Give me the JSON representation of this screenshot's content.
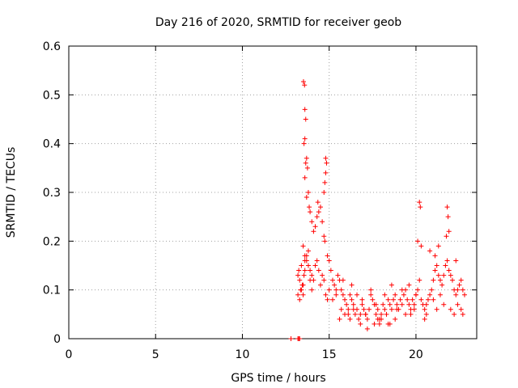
{
  "chart_data": {
    "type": "scatter",
    "title": "Day 216 of 2020, SRMTID for receiver geob",
    "xlabel": "GPS time / hours",
    "ylabel": "SRMTID / TECUs",
    "xlim": [
      0,
      23.5
    ],
    "ylim": [
      0,
      0.6
    ],
    "x_ticks": [
      0,
      5,
      10,
      15,
      20
    ],
    "y_ticks": [
      0,
      0.1,
      0.2,
      0.3,
      0.4,
      0.5,
      0.6
    ],
    "x_tick_labels": [
      "0",
      "5",
      "10",
      "15",
      "20"
    ],
    "y_tick_labels": [
      "0",
      "0.1",
      "0.2",
      "0.3",
      "0.4",
      "0.5",
      "0.6"
    ],
    "grid": true,
    "marker": "+",
    "marker_color": "#ff0000",
    "series": [
      {
        "name": "SRMTID",
        "x": [
          12.8,
          13.2,
          13.25,
          13.3,
          13.2,
          13.25,
          13.3,
          13.35,
          13.4,
          13.45,
          13.5,
          13.55,
          13.6,
          13.2,
          13.3,
          13.4,
          13.5,
          13.6,
          13.7,
          13.8,
          13.9,
          14.0,
          13.5,
          13.6,
          13.7,
          13.8,
          13.9,
          14.0,
          14.1,
          14.2,
          14.3,
          14.4,
          14.5,
          14.6,
          14.7,
          14.8,
          14.9,
          15.0,
          13.52,
          13.58,
          13.6,
          13.65,
          13.55,
          13.6,
          13.7,
          13.65,
          13.6,
          13.75,
          13.8,
          13.7,
          13.85,
          13.9,
          14.0,
          14.1,
          14.2,
          14.3,
          14.35,
          14.4,
          14.5,
          14.6,
          14.7,
          14.75,
          14.8,
          14.85,
          14.8,
          14.75,
          14.7,
          14.9,
          15.0,
          15.1,
          15.2,
          15.3,
          15.4,
          15.5,
          15.6,
          15.7,
          15.8,
          15.9,
          16.0,
          16.1,
          16.2,
          16.3,
          16.4,
          16.5,
          16.6,
          16.7,
          16.8,
          16.9,
          17.0,
          17.1,
          17.2,
          17.3,
          17.4,
          17.5,
          17.6,
          17.7,
          17.8,
          17.9,
          18.0,
          18.1,
          18.2,
          18.3,
          18.4,
          18.5,
          18.6,
          18.7,
          18.8,
          18.9,
          19.0,
          19.1,
          19.2,
          19.3,
          19.4,
          19.5,
          19.6,
          19.7,
          19.8,
          19.9,
          20.0,
          20.1,
          20.2,
          20.3,
          20.4,
          20.5,
          20.6,
          20.7,
          20.8,
          20.9,
          21.0,
          21.1,
          21.2,
          21.3,
          21.4,
          21.5,
          21.6,
          21.7,
          21.8,
          21.9,
          22.0,
          22.1,
          22.2,
          22.3,
          22.4,
          22.5,
          22.6,
          22.7,
          22.8,
          20.2,
          20.25,
          20.1,
          20.3,
          21.8,
          21.85,
          21.9,
          21.75,
          21.3,
          20.8,
          21.1,
          22.3,
          16.8,
          17.2,
          17.6,
          18.0,
          18.4,
          16.1,
          15.7,
          15.4,
          15.2,
          15.8,
          16.3,
          16.6,
          17.4,
          18.2,
          18.6,
          19.2,
          19.6,
          20.0,
          20.6,
          21.0,
          21.4,
          21.6,
          22.0,
          22.4,
          22.7,
          17.9,
          18.8,
          19.4,
          19.9,
          16.9,
          17.7,
          16.4,
          15.9,
          15.6,
          18.9,
          19.7,
          20.5,
          21.2,
          22.2,
          22.6,
          16.2,
          17.1,
          17.8,
          18.5
        ],
        "y": [
          0.0,
          0.0,
          0.0,
          0.0,
          0.13,
          0.14,
          0.12,
          0.1,
          0.15,
          0.11,
          0.09,
          0.13,
          0.16,
          0.09,
          0.08,
          0.1,
          0.11,
          0.14,
          0.17,
          0.15,
          0.12,
          0.1,
          0.19,
          0.17,
          0.16,
          0.18,
          0.14,
          0.13,
          0.12,
          0.15,
          0.16,
          0.14,
          0.11,
          0.13,
          0.12,
          0.09,
          0.08,
          0.1,
          0.527,
          0.52,
          0.47,
          0.45,
          0.4,
          0.41,
          0.37,
          0.36,
          0.33,
          0.35,
          0.3,
          0.29,
          0.27,
          0.26,
          0.24,
          0.22,
          0.23,
          0.25,
          0.28,
          0.26,
          0.27,
          0.24,
          0.21,
          0.2,
          0.37,
          0.36,
          0.34,
          0.32,
          0.3,
          0.17,
          0.16,
          0.14,
          0.12,
          0.11,
          0.1,
          0.13,
          0.12,
          0.1,
          0.09,
          0.08,
          0.07,
          0.06,
          0.09,
          0.08,
          0.07,
          0.05,
          0.06,
          0.04,
          0.05,
          0.07,
          0.06,
          0.05,
          0.04,
          0.06,
          0.09,
          0.08,
          0.07,
          0.05,
          0.06,
          0.04,
          0.05,
          0.07,
          0.06,
          0.05,
          0.08,
          0.07,
          0.06,
          0.08,
          0.09,
          0.07,
          0.06,
          0.08,
          0.07,
          0.09,
          0.1,
          0.08,
          0.07,
          0.06,
          0.08,
          0.07,
          0.09,
          0.1,
          0.12,
          0.08,
          0.07,
          0.06,
          0.05,
          0.08,
          0.09,
          0.1,
          0.12,
          0.14,
          0.15,
          0.13,
          0.12,
          0.11,
          0.13,
          0.15,
          0.16,
          0.14,
          0.13,
          0.12,
          0.1,
          0.09,
          0.1,
          0.11,
          0.12,
          0.1,
          0.09,
          0.28,
          0.27,
          0.2,
          0.19,
          0.27,
          0.25,
          0.22,
          0.21,
          0.19,
          0.18,
          0.17,
          0.16,
          0.03,
          0.02,
          0.03,
          0.04,
          0.03,
          0.05,
          0.06,
          0.09,
          0.08,
          0.12,
          0.11,
          0.09,
          0.1,
          0.09,
          0.11,
          0.1,
          0.11,
          0.09,
          0.07,
          0.08,
          0.09,
          0.07,
          0.06,
          0.07,
          0.05,
          0.03,
          0.04,
          0.05,
          0.06,
          0.08,
          0.07,
          0.06,
          0.05,
          0.04,
          0.06,
          0.05,
          0.04,
          0.06,
          0.05,
          0.06,
          0.04,
          0.05,
          0.04,
          0.03
        ]
      }
    ]
  }
}
